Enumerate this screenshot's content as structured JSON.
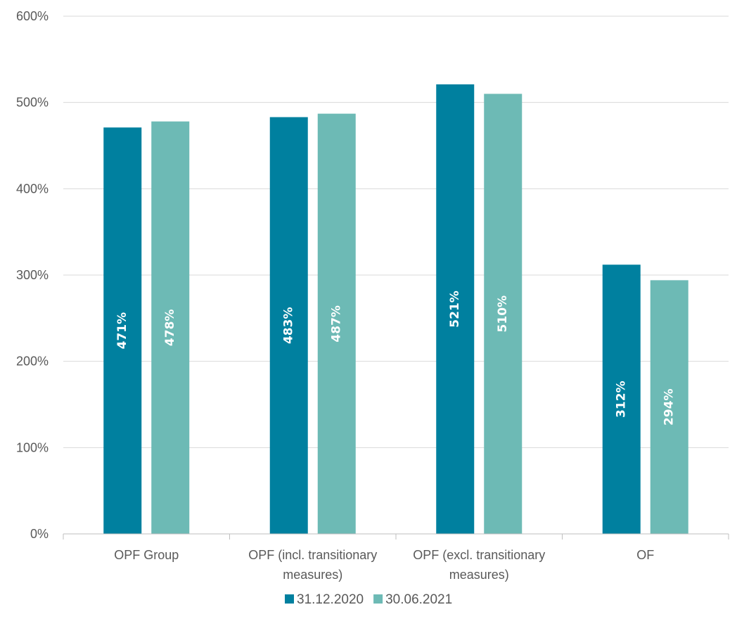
{
  "chart_data": {
    "type": "bar",
    "categories": [
      [
        "OPF Group"
      ],
      [
        "OPF (incl. transitionary",
        "measures)"
      ],
      [
        "OPF (excl. transitionary",
        "measures)"
      ],
      [
        "OF"
      ]
    ],
    "series": [
      {
        "name": "31.12.2020",
        "color": "#00809f",
        "values": [
          471,
          483,
          521,
          312
        ],
        "labels": [
          "471%",
          "483%",
          "521%",
          "312%"
        ]
      },
      {
        "name": "30.06.2021",
        "color": "#6dbab5",
        "values": [
          478,
          487,
          510,
          294
        ],
        "labels": [
          "478%",
          "487%",
          "510%",
          "294%"
        ]
      }
    ],
    "yticks": [
      "0%",
      "100%",
      "200%",
      "300%",
      "400%",
      "500%",
      "600%"
    ],
    "ylim": [
      0,
      600
    ],
    "grid": true,
    "legend_position": "bottom"
  }
}
